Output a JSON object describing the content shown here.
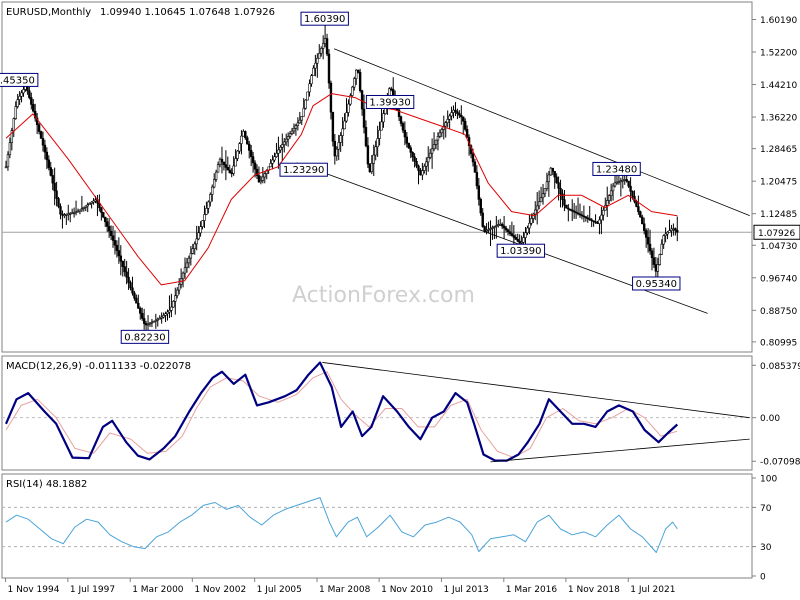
{
  "header": {
    "symbol": "EURUSD,Monthly",
    "ohlc": "1.09940 1.10645 1.07648 1.07926"
  },
  "watermark": "ActionForex.com",
  "colors": {
    "candle": "#000000",
    "ma_line": "#e00000",
    "macd_line": "#000080",
    "signal_line": "#e8a0a0",
    "rsi_line": "#4aa3d8",
    "trendline": "#000000",
    "current_price_line": "#a0a0a0",
    "panel_border": "#808080"
  },
  "chart_data": [
    {
      "type": "candlestick",
      "title": "EURUSD,Monthly",
      "x_ticks": [
        "1 Nov 1994",
        "1 Jul 1997",
        "1 Mar 2000",
        "1 Nov 2002",
        "1 Jul 2005",
        "1 Mar 2008",
        "1 Nov 2010",
        "1 Jul 2013",
        "1 Mar 2016",
        "1 Nov 2018",
        "1 Jul 2021"
      ],
      "y_ticks": [
        "1.60190",
        "1.52200",
        "1.44210",
        "1.36220",
        "1.28465",
        "1.20475",
        "1.12485",
        "1.04730",
        "0.96740",
        "0.88750",
        "0.80995"
      ],
      "ylim": [
        0.79,
        1.64
      ],
      "current_price": "1.07926",
      "last_bar_ohlc": {
        "open": 1.0994,
        "high": 1.10645,
        "low": 1.07648,
        "close": 1.07926
      },
      "price_path": [
        [
          1994.85,
          1.24
        ],
        [
          1995.3,
          1.4
        ],
        [
          1995.7,
          1.44
        ],
        [
          1996.5,
          1.28
        ],
        [
          1997.2,
          1.12
        ],
        [
          1997.9,
          1.13
        ],
        [
          1998.7,
          1.16
        ],
        [
          1999.5,
          1.05
        ],
        [
          2000.2,
          0.94
        ],
        [
          2000.8,
          0.85
        ],
        [
          2001.5,
          0.87
        ],
        [
          2001.9,
          0.89
        ],
        [
          2002.5,
          0.99
        ],
        [
          2003.0,
          1.06
        ],
        [
          2003.5,
          1.15
        ],
        [
          2004.0,
          1.26
        ],
        [
          2004.5,
          1.22
        ],
        [
          2005.0,
          1.33
        ],
        [
          2005.7,
          1.2
        ],
        [
          2006.5,
          1.28
        ],
        [
          2007.0,
          1.32
        ],
        [
          2007.5,
          1.36
        ],
        [
          2008.0,
          1.48
        ],
        [
          2008.55,
          1.56
        ],
        [
          2008.9,
          1.26
        ],
        [
          2009.3,
          1.34
        ],
        [
          2009.9,
          1.49
        ],
        [
          2010.4,
          1.22
        ],
        [
          2011.3,
          1.44
        ],
        [
          2012.0,
          1.3
        ],
        [
          2012.6,
          1.22
        ],
        [
          2013.3,
          1.31
        ],
        [
          2014.0,
          1.38
        ],
        [
          2014.4,
          1.36
        ],
        [
          2014.9,
          1.24
        ],
        [
          2015.3,
          1.08
        ],
        [
          2016.0,
          1.1
        ],
        [
          2016.9,
          1.05
        ],
        [
          2017.4,
          1.12
        ],
        [
          2017.9,
          1.18
        ],
        [
          2018.2,
          1.24
        ],
        [
          2018.8,
          1.14
        ],
        [
          2019.5,
          1.12
        ],
        [
          2020.2,
          1.1
        ],
        [
          2020.9,
          1.2
        ],
        [
          2021.4,
          1.21
        ],
        [
          2022.0,
          1.12
        ],
        [
          2022.7,
          0.98
        ],
        [
          2023.0,
          1.07
        ],
        [
          2023.4,
          1.09
        ],
        [
          2023.6,
          1.0792
        ]
      ],
      "moving_average": [
        [
          1994.85,
          1.31
        ],
        [
          1996.0,
          1.37
        ],
        [
          1997.5,
          1.26
        ],
        [
          1999.0,
          1.14
        ],
        [
          2000.5,
          1.02
        ],
        [
          2001.5,
          0.95
        ],
        [
          2002.5,
          0.96
        ],
        [
          2003.5,
          1.04
        ],
        [
          2004.5,
          1.16
        ],
        [
          2005.5,
          1.22
        ],
        [
          2006.5,
          1.24
        ],
        [
          2007.5,
          1.32
        ],
        [
          2008.0,
          1.39
        ],
        [
          2008.8,
          1.42
        ],
        [
          2009.8,
          1.41
        ],
        [
          2010.5,
          1.39
        ],
        [
          2011.5,
          1.38
        ],
        [
          2012.5,
          1.36
        ],
        [
          2013.5,
          1.34
        ],
        [
          2014.5,
          1.32
        ],
        [
          2015.5,
          1.2
        ],
        [
          2016.5,
          1.13
        ],
        [
          2017.5,
          1.12
        ],
        [
          2018.5,
          1.17
        ],
        [
          2019.5,
          1.17
        ],
        [
          2020.5,
          1.14
        ],
        [
          2021.5,
          1.17
        ],
        [
          2022.5,
          1.13
        ],
        [
          2023.6,
          1.12
        ]
      ],
      "price_labels": [
        {
          "text": "1.45350",
          "x": 1995.2,
          "y": 1.4535
        },
        {
          "text": "0.82230",
          "x": 2000.8,
          "y": 0.8223
        },
        {
          "text": "1.60390",
          "x": 2008.5,
          "y": 1.6039
        },
        {
          "text": "1.23290",
          "x": 2007.6,
          "y": 1.2329
        },
        {
          "text": "1.39930",
          "x": 2011.3,
          "y": 1.3993
        },
        {
          "text": "1.03390",
          "x": 2016.9,
          "y": 1.0339
        },
        {
          "text": "1.23480",
          "x": 2021.0,
          "y": 1.2348
        },
        {
          "text": "0.95340",
          "x": 2022.7,
          "y": 0.9534
        }
      ],
      "trendlines": [
        {
          "from": [
            2008.9,
            1.53
          ],
          "to": [
            2026.7,
            1.12
          ]
        },
        {
          "from": [
            2007.3,
            1.25
          ],
          "to": [
            2024.9,
            0.88
          ]
        }
      ]
    },
    {
      "type": "line",
      "title": "MACD(12,26,9) -0.011133 -0.022078",
      "y_ticks": [
        "0.085379",
        "0.00",
        "-0.070989"
      ],
      "ylim": [
        -0.082,
        0.094
      ],
      "series": [
        {
          "name": "MACD",
          "values": [
            [
              1994.85,
              -0.01
            ],
            [
              1995.3,
              0.03
            ],
            [
              1995.8,
              0.04
            ],
            [
              1996.5,
              0.01
            ],
            [
              1997.0,
              -0.01
            ],
            [
              1997.7,
              -0.065
            ],
            [
              1998.4,
              -0.066
            ],
            [
              1999.0,
              -0.015
            ],
            [
              1999.4,
              -0.005
            ],
            [
              2000.0,
              -0.04
            ],
            [
              2000.5,
              -0.062
            ],
            [
              2001.0,
              -0.068
            ],
            [
              2001.6,
              -0.05
            ],
            [
              2002.1,
              -0.03
            ],
            [
              2002.7,
              0.01
            ],
            [
              2003.2,
              0.04
            ],
            [
              2003.7,
              0.065
            ],
            [
              2004.1,
              0.075
            ],
            [
              2004.6,
              0.055
            ],
            [
              2005.1,
              0.07
            ],
            [
              2005.6,
              0.02
            ],
            [
              2006.1,
              0.025
            ],
            [
              2006.8,
              0.035
            ],
            [
              2007.3,
              0.045
            ],
            [
              2007.8,
              0.07
            ],
            [
              2008.3,
              0.09
            ],
            [
              2008.8,
              0.05
            ],
            [
              2009.2,
              -0.015
            ],
            [
              2009.7,
              0.01
            ],
            [
              2010.1,
              -0.03
            ],
            [
              2010.5,
              -0.015
            ],
            [
              2011.0,
              0.035
            ],
            [
              2011.6,
              0.01
            ],
            [
              2012.1,
              -0.015
            ],
            [
              2012.6,
              -0.035
            ],
            [
              2013.1,
              0.0
            ],
            [
              2013.6,
              0.01
            ],
            [
              2014.1,
              0.04
            ],
            [
              2014.6,
              0.025
            ],
            [
              2014.9,
              -0.01
            ],
            [
              2015.3,
              -0.06
            ],
            [
              2015.8,
              -0.07
            ],
            [
              2016.3,
              -0.07
            ],
            [
              2016.8,
              -0.06
            ],
            [
              2017.2,
              -0.04
            ],
            [
              2017.7,
              -0.01
            ],
            [
              2018.1,
              0.03
            ],
            [
              2018.6,
              0.01
            ],
            [
              2019.1,
              -0.01
            ],
            [
              2019.6,
              -0.01
            ],
            [
              2020.1,
              -0.015
            ],
            [
              2020.6,
              0.01
            ],
            [
              2021.1,
              0.02
            ],
            [
              2021.7,
              0.01
            ],
            [
              2022.2,
              -0.02
            ],
            [
              2022.8,
              -0.04
            ],
            [
              2023.2,
              -0.025
            ],
            [
              2023.6,
              -0.011133
            ]
          ]
        },
        {
          "name": "Signal",
          "values": [
            [
              1994.85,
              -0.02
            ],
            [
              1995.5,
              0.02
            ],
            [
              1996.2,
              0.03
            ],
            [
              1997.0,
              0.0
            ],
            [
              1997.8,
              -0.05
            ],
            [
              1998.6,
              -0.058
            ],
            [
              1999.3,
              -0.025
            ],
            [
              2000.2,
              -0.035
            ],
            [
              2000.9,
              -0.058
            ],
            [
              2001.7,
              -0.055
            ],
            [
              2002.4,
              -0.03
            ],
            [
              2003.0,
              0.015
            ],
            [
              2003.6,
              0.05
            ],
            [
              2004.3,
              0.065
            ],
            [
              2005.0,
              0.06
            ],
            [
              2005.7,
              0.035
            ],
            [
              2006.5,
              0.025
            ],
            [
              2007.3,
              0.038
            ],
            [
              2008.0,
              0.065
            ],
            [
              2008.6,
              0.075
            ],
            [
              2009.2,
              0.03
            ],
            [
              2009.8,
              0.005
            ],
            [
              2010.4,
              -0.015
            ],
            [
              2011.1,
              0.015
            ],
            [
              2011.8,
              0.015
            ],
            [
              2012.5,
              -0.015
            ],
            [
              2013.2,
              -0.015
            ],
            [
              2013.9,
              0.02
            ],
            [
              2014.6,
              0.03
            ],
            [
              2015.2,
              -0.02
            ],
            [
              2015.9,
              -0.055
            ],
            [
              2016.6,
              -0.065
            ],
            [
              2017.3,
              -0.05
            ],
            [
              2018.0,
              0.0
            ],
            [
              2018.7,
              0.015
            ],
            [
              2019.4,
              -0.005
            ],
            [
              2020.1,
              -0.01
            ],
            [
              2020.8,
              0.0
            ],
            [
              2021.5,
              0.015
            ],
            [
              2022.2,
              0.0
            ],
            [
              2022.9,
              -0.03
            ],
            [
              2023.6,
              -0.022078
            ]
          ]
        }
      ],
      "trendlines": [
        {
          "from": [
            2008.4,
            0.09
          ],
          "to": [
            2026.7,
            0.0
          ]
        },
        {
          "from": [
            2015.6,
            -0.072
          ],
          "to": [
            2026.7,
            -0.035
          ]
        }
      ]
    },
    {
      "type": "line",
      "title": "RSI(14) 48.1882",
      "y_ticks": [
        "100",
        "70",
        "30",
        "0"
      ],
      "ylim": [
        0,
        100
      ],
      "levels": [
        70,
        30
      ],
      "series": [
        {
          "name": "RSI",
          "values": [
            [
              1994.85,
              55
            ],
            [
              1995.3,
              62
            ],
            [
              1995.8,
              58
            ],
            [
              1996.3,
              48
            ],
            [
              1996.8,
              38
            ],
            [
              1997.3,
              33
            ],
            [
              1997.8,
              50
            ],
            [
              1998.3,
              58
            ],
            [
              1998.8,
              55
            ],
            [
              1999.3,
              42
            ],
            [
              1999.8,
              35
            ],
            [
              2000.3,
              30
            ],
            [
              2000.8,
              28
            ],
            [
              2001.3,
              40
            ],
            [
              2001.8,
              45
            ],
            [
              2002.3,
              55
            ],
            [
              2002.8,
              62
            ],
            [
              2003.3,
              72
            ],
            [
              2003.8,
              75
            ],
            [
              2004.3,
              68
            ],
            [
              2004.8,
              72
            ],
            [
              2005.3,
              60
            ],
            [
              2005.8,
              52
            ],
            [
              2006.3,
              62
            ],
            [
              2006.8,
              68
            ],
            [
              2007.3,
              72
            ],
            [
              2007.8,
              76
            ],
            [
              2008.3,
              80
            ],
            [
              2008.7,
              55
            ],
            [
              2009.0,
              40
            ],
            [
              2009.5,
              55
            ],
            [
              2009.9,
              60
            ],
            [
              2010.3,
              40
            ],
            [
              2010.8,
              50
            ],
            [
              2011.3,
              62
            ],
            [
              2011.8,
              45
            ],
            [
              2012.3,
              40
            ],
            [
              2012.8,
              52
            ],
            [
              2013.3,
              55
            ],
            [
              2013.8,
              60
            ],
            [
              2014.3,
              55
            ],
            [
              2014.8,
              42
            ],
            [
              2015.1,
              25
            ],
            [
              2015.6,
              38
            ],
            [
              2016.1,
              40
            ],
            [
              2016.6,
              42
            ],
            [
              2017.1,
              35
            ],
            [
              2017.6,
              55
            ],
            [
              2018.1,
              62
            ],
            [
              2018.6,
              48
            ],
            [
              2019.1,
              42
            ],
            [
              2019.6,
              45
            ],
            [
              2020.1,
              40
            ],
            [
              2020.6,
              52
            ],
            [
              2021.1,
              62
            ],
            [
              2021.6,
              48
            ],
            [
              2022.1,
              40
            ],
            [
              2022.7,
              24
            ],
            [
              2023.1,
              48
            ],
            [
              2023.4,
              55
            ],
            [
              2023.6,
              48.1882
            ]
          ]
        }
      ]
    }
  ]
}
